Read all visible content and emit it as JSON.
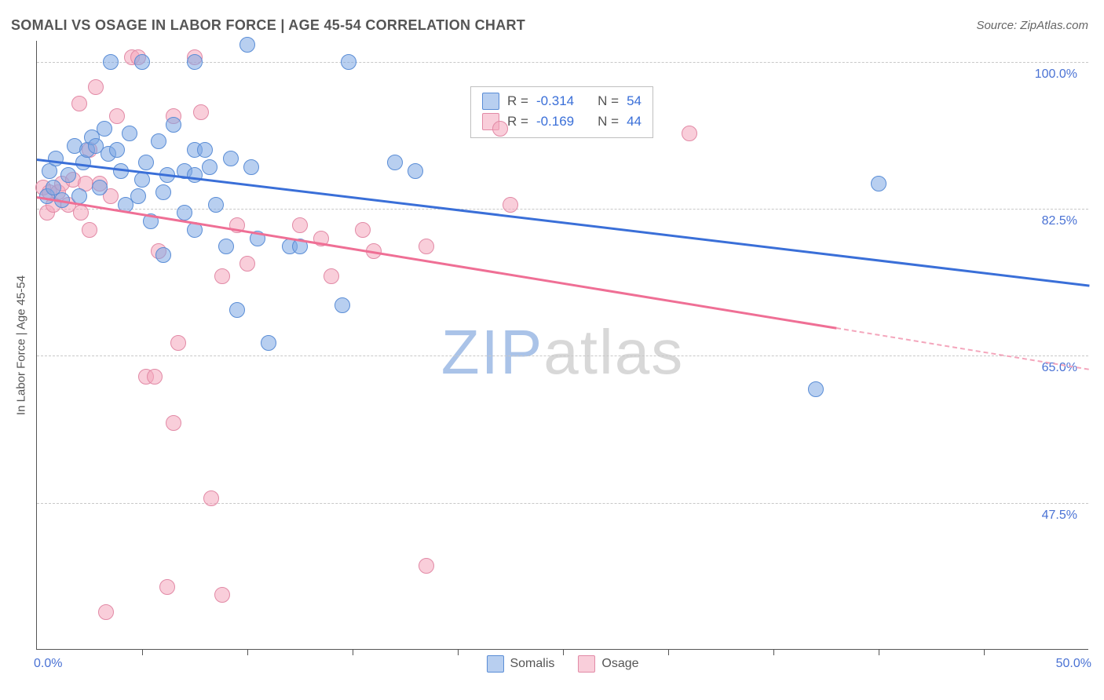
{
  "title": "SOMALI VS OSAGE IN LABOR FORCE | AGE 45-54 CORRELATION CHART",
  "source": "Source: ZipAtlas.com",
  "chart": {
    "type": "scatter",
    "ylabel": "In Labor Force | Age 45-54",
    "xlim": [
      0.0,
      50.0
    ],
    "ylim": [
      30.0,
      102.5
    ],
    "xlim_labels": {
      "min": "0.0%",
      "max": "50.0%"
    },
    "ytick_values": [
      47.5,
      65.0,
      82.5,
      100.0
    ],
    "ytick_labels": [
      "47.5%",
      "65.0%",
      "82.5%",
      "100.0%"
    ],
    "xtick_values": [
      5,
      10,
      15,
      20,
      25,
      30,
      35,
      40,
      45
    ],
    "background_color": "#ffffff",
    "grid_color": "#c8c8c8",
    "border_color": "#555555",
    "dot_radius": 10,
    "series": {
      "blue": {
        "label": "Somalis",
        "R": "-0.314",
        "N": "54",
        "fill_color": "#7da8e3",
        "stroke_color": "#5a8dd6",
        "trend": {
          "x1": 0.0,
          "y1": 88.5,
          "x2": 50.0,
          "y2": 73.5,
          "color": "#3a6fd8",
          "width": 3
        },
        "points": [
          [
            0.5,
            84.0
          ],
          [
            0.6,
            87.0
          ],
          [
            0.8,
            85.0
          ],
          [
            0.9,
            88.5
          ],
          [
            1.2,
            83.5
          ],
          [
            1.5,
            86.5
          ],
          [
            1.8,
            90.0
          ],
          [
            2.0,
            84.0
          ],
          [
            2.2,
            88.0
          ],
          [
            2.4,
            89.5
          ],
          [
            2.6,
            91.0
          ],
          [
            2.8,
            90.0
          ],
          [
            3.0,
            85.0
          ],
          [
            3.2,
            92.0
          ],
          [
            3.4,
            89.0
          ],
          [
            3.5,
            100.0
          ],
          [
            3.8,
            89.5
          ],
          [
            4.0,
            87.0
          ],
          [
            4.2,
            83.0
          ],
          [
            4.4,
            91.5
          ],
          [
            4.8,
            84.0
          ],
          [
            5.0,
            100.0
          ],
          [
            5.0,
            86.0
          ],
          [
            5.2,
            88.0
          ],
          [
            5.4,
            81.0
          ],
          [
            5.8,
            90.5
          ],
          [
            6.0,
            84.5
          ],
          [
            6.0,
            77.0
          ],
          [
            6.2,
            86.5
          ],
          [
            6.5,
            92.5
          ],
          [
            7.0,
            87.0
          ],
          [
            7.0,
            82.0
          ],
          [
            7.5,
            86.5
          ],
          [
            7.5,
            100.0
          ],
          [
            7.5,
            89.5
          ],
          [
            7.5,
            80.0
          ],
          [
            8.0,
            89.5
          ],
          [
            8.2,
            87.5
          ],
          [
            8.5,
            83.0
          ],
          [
            9.0,
            78.0
          ],
          [
            9.2,
            88.5
          ],
          [
            9.5,
            70.5
          ],
          [
            10.0,
            102.0
          ],
          [
            10.2,
            87.5
          ],
          [
            10.5,
            79.0
          ],
          [
            11.0,
            66.5
          ],
          [
            12.0,
            78.0
          ],
          [
            12.5,
            78.0
          ],
          [
            14.5,
            71.0
          ],
          [
            14.8,
            100.0
          ],
          [
            17.0,
            88.0
          ],
          [
            18.0,
            87.0
          ],
          [
            37.0,
            61.0
          ],
          [
            40.0,
            85.5
          ]
        ]
      },
      "pink": {
        "label": "Osage",
        "R": "-0.169",
        "N": "44",
        "fill_color": "#f4a6bc",
        "stroke_color": "#e28aa6",
        "trend": {
          "x1": 0.0,
          "y1": 84.0,
          "x2": 50.0,
          "y2": 63.5,
          "color": "#ef6f95",
          "width": 3,
          "dash_from_x": 38.0
        },
        "points": [
          [
            0.3,
            85.0
          ],
          [
            0.5,
            82.0
          ],
          [
            0.6,
            84.5
          ],
          [
            0.8,
            83.0
          ],
          [
            1.0,
            84.5
          ],
          [
            1.2,
            85.5
          ],
          [
            1.5,
            83.0
          ],
          [
            1.7,
            86.0
          ],
          [
            2.0,
            95.0
          ],
          [
            2.1,
            82.0
          ],
          [
            2.3,
            85.5
          ],
          [
            2.5,
            89.5
          ],
          [
            2.5,
            80.0
          ],
          [
            2.8,
            97.0
          ],
          [
            3.0,
            85.5
          ],
          [
            3.3,
            34.5
          ],
          [
            3.5,
            84.0
          ],
          [
            3.8,
            93.5
          ],
          [
            4.5,
            100.5
          ],
          [
            4.8,
            100.5
          ],
          [
            5.2,
            62.5
          ],
          [
            5.6,
            62.5
          ],
          [
            5.8,
            77.5
          ],
          [
            6.2,
            37.5
          ],
          [
            6.5,
            93.5
          ],
          [
            6.7,
            66.5
          ],
          [
            6.5,
            57.0
          ],
          [
            7.5,
            100.5
          ],
          [
            7.8,
            94.0
          ],
          [
            8.3,
            48.0
          ],
          [
            8.8,
            36.5
          ],
          [
            8.8,
            74.5
          ],
          [
            9.5,
            80.5
          ],
          [
            10.0,
            76.0
          ],
          [
            12.5,
            80.5
          ],
          [
            13.5,
            79.0
          ],
          [
            14.0,
            74.5
          ],
          [
            15.5,
            80.0
          ],
          [
            16.0,
            77.5
          ],
          [
            18.5,
            78.0
          ],
          [
            18.5,
            40.0
          ],
          [
            22.0,
            92.0
          ],
          [
            22.5,
            83.0
          ],
          [
            31.0,
            91.5
          ]
        ]
      }
    },
    "legend_top": {
      "r_label": "R =",
      "n_label": "N =",
      "value_color": "#3a6fd8",
      "label_color": "#555555",
      "border_color": "#bfbfbf",
      "fontsize": 17
    },
    "watermark": {
      "part1": "ZIP",
      "part2": "atlas"
    }
  }
}
